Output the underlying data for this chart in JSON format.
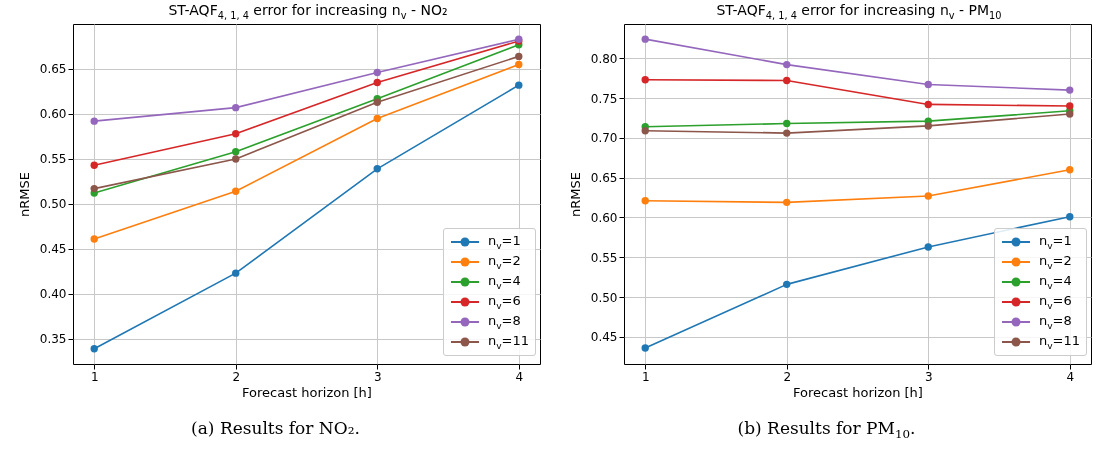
{
  "chart_data": [
    {
      "type": "line",
      "title": "ST-AQF$_{4, 1, 4}$ error for increasing n$_{v}$ - NO₂",
      "xlabel": "Forecast horizon [h]",
      "ylabel": "nRMSE",
      "x": [
        1,
        2,
        3,
        4
      ],
      "xlim": [
        0.85,
        4.15
      ],
      "xticks": [
        1,
        2,
        3,
        4
      ],
      "ylim": [
        0.322,
        0.7
      ],
      "yticks": [
        0.35,
        {
          "value": 0.4,
          "label": "0.40"
        },
        0.45,
        {
          "value": 0.5,
          "label": "0.50"
        },
        0.55,
        {
          "value": 0.6,
          "label": "0.60"
        },
        0.65
      ],
      "grid": true,
      "legend": "bottom right",
      "marker": "circle",
      "line_style": "solid",
      "annotations": [
        "(a) Results for NO₂."
      ],
      "series": [
        {
          "name": "n$_{v}$=1",
          "color": "#1f77b4",
          "values": [
            0.339,
            0.423,
            0.539,
            0.632
          ]
        },
        {
          "name": "n$_{v}$=2",
          "color": "#ff7f0e",
          "values": [
            0.461,
            0.514,
            0.595,
            0.655
          ]
        },
        {
          "name": "n$_{v}$=4",
          "color": "#2ca02c",
          "values": [
            0.512,
            0.558,
            0.617,
            0.677
          ]
        },
        {
          "name": "n$_{v}$=6",
          "color": "#d62728",
          "values": [
            0.543,
            0.578,
            0.635,
            0.681
          ]
        },
        {
          "name": "n$_{v}$=8",
          "color": "#9467bd",
          "values": [
            0.592,
            0.607,
            0.646,
            0.683
          ]
        },
        {
          "name": "n$_{v}$=11",
          "color": "#8c564b",
          "values": [
            0.517,
            0.55,
            0.613,
            0.664
          ]
        }
      ]
    },
    {
      "type": "line",
      "title": "ST-AQF$_{4, 1, 4}$ error for increasing n$_{v}$ - PM$_{10}$",
      "xlabel": "Forecast horizon [h]",
      "ylabel": "nRMSE",
      "x": [
        1,
        2,
        3,
        4
      ],
      "xlim": [
        0.85,
        4.15
      ],
      "xticks": [
        1,
        2,
        3,
        4
      ],
      "ylim": [
        0.416,
        0.843
      ],
      "yticks": [
        0.45,
        {
          "value": 0.5,
          "label": "0.50"
        },
        0.55,
        {
          "value": 0.6,
          "label": "0.60"
        },
        0.65,
        {
          "value": 0.7,
          "label": "0.70"
        },
        0.75,
        {
          "value": 0.8,
          "label": "0.80"
        }
      ],
      "grid": true,
      "legend": "bottom right",
      "marker": "circle",
      "line_style": "solid",
      "annotations": [
        "(b) Results for PM$_{10}$."
      ],
      "series": [
        {
          "name": "n$_{v}$=1",
          "color": "#1f77b4",
          "values": [
            0.436,
            0.516,
            0.563,
            0.601
          ]
        },
        {
          "name": "n$_{v}$=2",
          "color": "#ff7f0e",
          "values": [
            0.621,
            0.619,
            0.627,
            0.66
          ]
        },
        {
          "name": "n$_{v}$=4",
          "color": "#2ca02c",
          "values": [
            0.714,
            0.718,
            0.721,
            0.734
          ]
        },
        {
          "name": "n$_{v}$=6",
          "color": "#d62728",
          "values": [
            0.773,
            0.772,
            0.742,
            0.74
          ]
        },
        {
          "name": "n$_{v}$=8",
          "color": "#9467bd",
          "values": [
            0.824,
            0.792,
            0.767,
            0.76
          ]
        },
        {
          "name": "n$_{v}$=11",
          "color": "#8c564b",
          "values": [
            0.709,
            0.706,
            0.715,
            0.73
          ]
        }
      ]
    }
  ]
}
